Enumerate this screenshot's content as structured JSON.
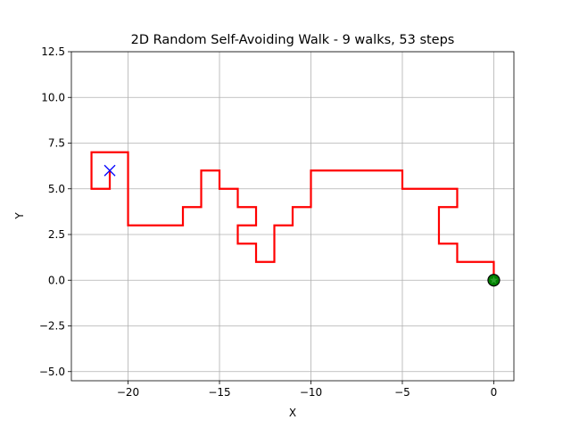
{
  "chart_data": {
    "type": "line",
    "title": "2D Random Self-Avoiding Walk - 9 walks, 53 steps",
    "xlabel": "X",
    "ylabel": "Y",
    "xlim": [
      -23.1,
      1.1
    ],
    "ylim": [
      -5.5,
      12.5
    ],
    "x_ticks": [
      -20,
      -15,
      -10,
      -5,
      0
    ],
    "x_tick_labels": [
      "−20",
      "−15",
      "−10",
      "−5",
      "0"
    ],
    "y_ticks": [
      -5,
      -2.5,
      0,
      2.5,
      5,
      7.5,
      10,
      12.5
    ],
    "y_tick_labels": [
      "−5.0",
      "−2.5",
      "0.0",
      "2.5",
      "5.0",
      "7.5",
      "10.0",
      "12.5"
    ],
    "grid": true,
    "series": [
      {
        "color": "#ff0000",
        "points": [
          [
            0,
            0
          ],
          [
            0,
            1
          ],
          [
            -2,
            1
          ],
          [
            -2,
            2
          ],
          [
            -3,
            2
          ],
          [
            -3,
            4
          ],
          [
            -2,
            4
          ],
          [
            -2,
            5
          ],
          [
            -5,
            5
          ],
          [
            -5,
            6
          ],
          [
            -10,
            6
          ],
          [
            -10,
            4
          ],
          [
            -11,
            4
          ],
          [
            -11,
            3
          ],
          [
            -12,
            3
          ],
          [
            -12,
            1
          ],
          [
            -13,
            1
          ],
          [
            -13,
            2
          ],
          [
            -14,
            2
          ],
          [
            -14,
            3
          ],
          [
            -13,
            3
          ],
          [
            -13,
            4
          ],
          [
            -14,
            4
          ],
          [
            -14,
            5
          ],
          [
            -15,
            5
          ],
          [
            -15,
            6
          ],
          [
            -16,
            6
          ],
          [
            -16,
            4
          ],
          [
            -17,
            4
          ],
          [
            -17,
            3
          ],
          [
            -20,
            3
          ],
          [
            -20,
            7
          ],
          [
            -22,
            7
          ],
          [
            -22,
            5
          ],
          [
            -21,
            5
          ],
          [
            -21,
            6
          ]
        ]
      }
    ],
    "start_marker": {
      "x": 0,
      "y": 0,
      "fill": "#008000",
      "edge": "#000000",
      "star": "#2ca02c"
    },
    "end_marker": {
      "x": -21,
      "y": 6,
      "color": "#0000ff"
    }
  }
}
